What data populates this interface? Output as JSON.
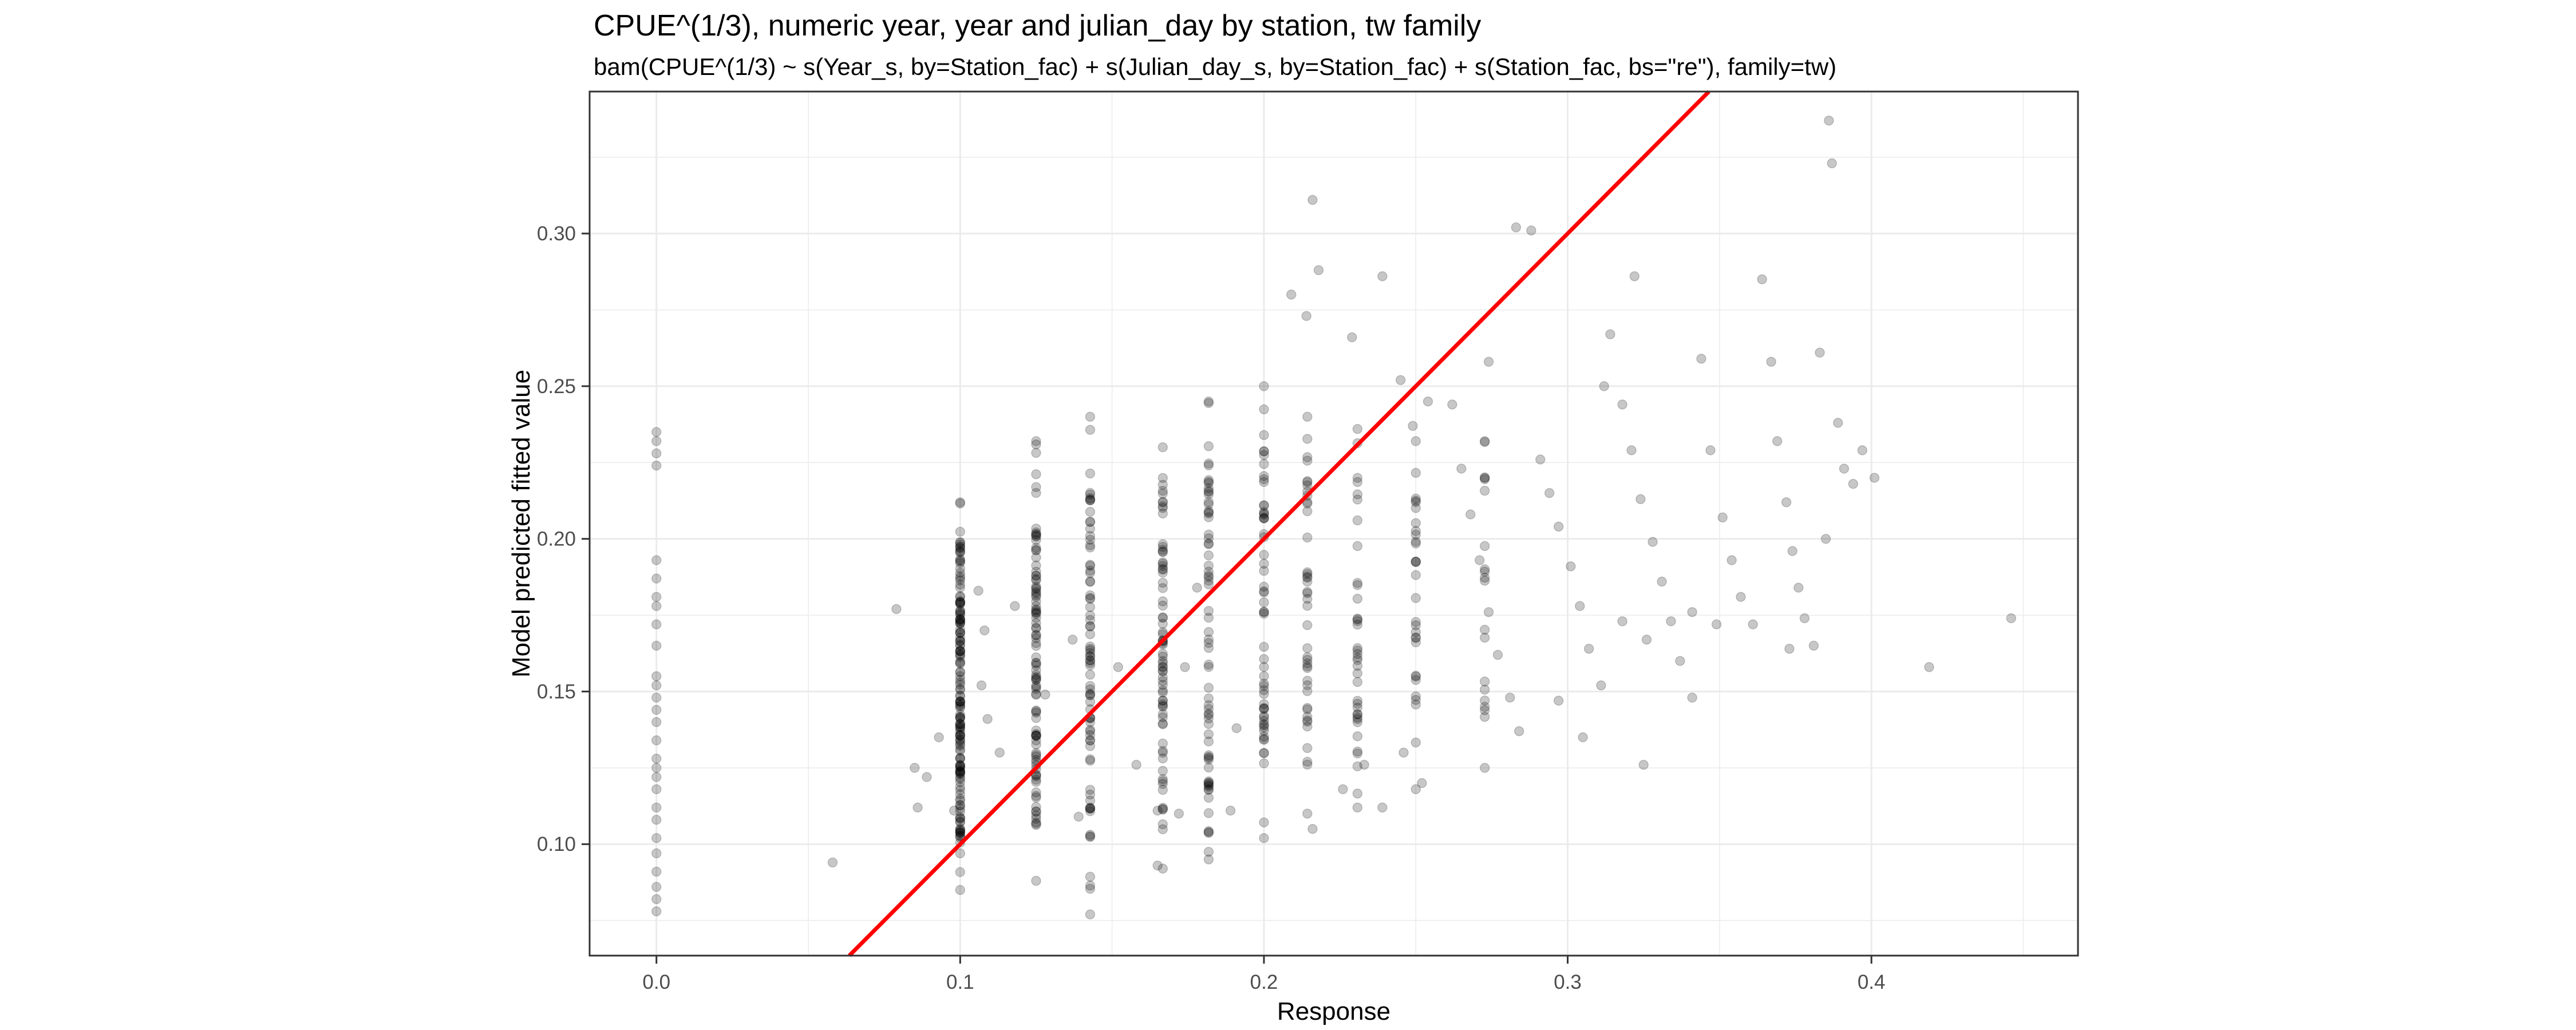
{
  "chart_data": {
    "type": "scatter",
    "title": "CPUE^(1/3), numeric year, year and julian_day by station, tw family",
    "subtitle": "bam(CPUE^(1/3) ~ s(Year_s, by=Station_fac) + s(Julian_day_s, by=Station_fac) + s(Station_fac, bs=\"re\"), family=tw)",
    "xlabel": "Response",
    "ylabel": "Model predicted fitted value",
    "xlim": [
      -0.022,
      0.468
    ],
    "ylim": [
      0.0635,
      0.3465
    ],
    "x_ticks": [
      0.0,
      0.1,
      0.2,
      0.3,
      0.4
    ],
    "x_tick_labels": [
      "0.0",
      "0.1",
      "0.2",
      "0.3",
      "0.4"
    ],
    "y_ticks": [
      0.1,
      0.15,
      0.2,
      0.25,
      0.3
    ],
    "y_tick_labels": [
      "0.10",
      "0.15",
      "0.20",
      "0.25",
      "0.30"
    ],
    "grid": true,
    "theme": "bw",
    "colors": {
      "point_fill": "#000000",
      "point_opacity": 0.22,
      "reference_line": "#ff0000",
      "grid": "#ebebeb",
      "panel_border": "#333333"
    },
    "reference_line": {
      "type": "identity",
      "slope": 1,
      "intercept": 0
    },
    "series": [
      {
        "values": [
          [
            0.0,
            0.235
          ],
          [
            0.0,
            0.232
          ],
          [
            0.0,
            0.228
          ],
          [
            0.0,
            0.224
          ],
          [
            0.0,
            0.193
          ],
          [
            0.0,
            0.187
          ],
          [
            0.0,
            0.181
          ],
          [
            0.0,
            0.178
          ],
          [
            0.0,
            0.172
          ],
          [
            0.0,
            0.165
          ],
          [
            0.0,
            0.155
          ],
          [
            0.0,
            0.152
          ],
          [
            0.0,
            0.148
          ],
          [
            0.0,
            0.144
          ],
          [
            0.0,
            0.14
          ],
          [
            0.0,
            0.134
          ],
          [
            0.0,
            0.128
          ],
          [
            0.0,
            0.125
          ],
          [
            0.0,
            0.122
          ],
          [
            0.0,
            0.118
          ],
          [
            0.0,
            0.112
          ],
          [
            0.0,
            0.108
          ],
          [
            0.0,
            0.102
          ],
          [
            0.0,
            0.097
          ],
          [
            0.0,
            0.091
          ],
          [
            0.0,
            0.086
          ],
          [
            0.0,
            0.082
          ],
          [
            0.0,
            0.078
          ],
          [
            0.058,
            0.094
          ],
          [
            0.079,
            0.177
          ],
          [
            0.085,
            0.125
          ],
          [
            0.086,
            0.112
          ],
          [
            0.089,
            0.122
          ],
          [
            0.093,
            0.135
          ],
          [
            0.098,
            0.111
          ],
          [
            0.106,
            0.183
          ],
          [
            0.108,
            0.17
          ],
          [
            0.107,
            0.152
          ],
          [
            0.109,
            0.141
          ],
          [
            0.113,
            0.13
          ],
          [
            0.118,
            0.178
          ],
          [
            0.128,
            0.149
          ],
          [
            0.137,
            0.167
          ],
          [
            0.139,
            0.109
          ],
          [
            0.152,
            0.158
          ],
          [
            0.158,
            0.126
          ],
          [
            0.165,
            0.111
          ],
          [
            0.165,
            0.093
          ],
          [
            0.172,
            0.11
          ],
          [
            0.174,
            0.158
          ],
          [
            0.178,
            0.184
          ],
          [
            0.189,
            0.111
          ],
          [
            0.191,
            0.138
          ],
          [
            0.216,
            0.311
          ],
          [
            0.209,
            0.28
          ],
          [
            0.218,
            0.288
          ],
          [
            0.214,
            0.273
          ],
          [
            0.229,
            0.266
          ],
          [
            0.239,
            0.286
          ],
          [
            0.245,
            0.252
          ],
          [
            0.249,
            0.237
          ],
          [
            0.254,
            0.245
          ],
          [
            0.216,
            0.105
          ],
          [
            0.226,
            0.118
          ],
          [
            0.233,
            0.126
          ],
          [
            0.239,
            0.112
          ],
          [
            0.246,
            0.13
          ],
          [
            0.252,
            0.12
          ],
          [
            0.262,
            0.244
          ],
          [
            0.265,
            0.223
          ],
          [
            0.268,
            0.208
          ],
          [
            0.271,
            0.193
          ],
          [
            0.274,
            0.176
          ],
          [
            0.277,
            0.162
          ],
          [
            0.281,
            0.148
          ],
          [
            0.284,
            0.137
          ],
          [
            0.288,
            0.301
          ],
          [
            0.291,
            0.226
          ],
          [
            0.294,
            0.215
          ],
          [
            0.297,
            0.204
          ],
          [
            0.301,
            0.191
          ],
          [
            0.304,
            0.178
          ],
          [
            0.307,
            0.164
          ],
          [
            0.311,
            0.152
          ],
          [
            0.314,
            0.267
          ],
          [
            0.318,
            0.244
          ],
          [
            0.321,
            0.229
          ],
          [
            0.324,
            0.213
          ],
          [
            0.328,
            0.199
          ],
          [
            0.331,
            0.186
          ],
          [
            0.334,
            0.173
          ],
          [
            0.322,
            0.286
          ],
          [
            0.325,
            0.126
          ],
          [
            0.337,
            0.16
          ],
          [
            0.341,
            0.148
          ],
          [
            0.344,
            0.259
          ],
          [
            0.347,
            0.229
          ],
          [
            0.351,
            0.207
          ],
          [
            0.354,
            0.193
          ],
          [
            0.357,
            0.181
          ],
          [
            0.361,
            0.172
          ],
          [
            0.364,
            0.285
          ],
          [
            0.367,
            0.258
          ],
          [
            0.369,
            0.232
          ],
          [
            0.372,
            0.212
          ],
          [
            0.374,
            0.196
          ],
          [
            0.376,
            0.184
          ],
          [
            0.378,
            0.174
          ],
          [
            0.381,
            0.165
          ],
          [
            0.383,
            0.261
          ],
          [
            0.386,
            0.337
          ],
          [
            0.387,
            0.323
          ],
          [
            0.389,
            0.238
          ],
          [
            0.391,
            0.223
          ],
          [
            0.394,
            0.218
          ],
          [
            0.397,
            0.229
          ],
          [
            0.401,
            0.22
          ],
          [
            0.419,
            0.158
          ],
          [
            0.446,
            0.174
          ],
          [
            0.385,
            0.2
          ],
          [
            0.373,
            0.164
          ],
          [
            0.341,
            0.176
          ],
          [
            0.349,
            0.172
          ],
          [
            0.305,
            0.135
          ],
          [
            0.297,
            0.147
          ],
          [
            0.312,
            0.25
          ],
          [
            0.318,
            0.173
          ],
          [
            0.326,
            0.167
          ],
          [
            0.283,
            0.302
          ],
          [
            0.274,
            0.258
          ]
        ]
      }
    ],
    "column_groups": [
      {
        "x": 0.1,
        "y_min": 0.085,
        "y_max": 0.212,
        "n": 150,
        "dense_min": 0.102,
        "dense_max": 0.202
      },
      {
        "x": 0.125,
        "y_min": 0.088,
        "y_max": 0.232,
        "n": 95,
        "dense_min": 0.105,
        "dense_max": 0.205
      },
      {
        "x": 0.1428,
        "y_min": 0.077,
        "y_max": 0.24,
        "n": 75,
        "dense_min": 0.108,
        "dense_max": 0.215
      },
      {
        "x": 0.1667,
        "y_min": 0.092,
        "y_max": 0.23,
        "n": 70,
        "dense_min": 0.11,
        "dense_max": 0.218
      },
      {
        "x": 0.1818,
        "y_min": 0.095,
        "y_max": 0.245,
        "n": 65,
        "dense_min": 0.115,
        "dense_max": 0.225
      },
      {
        "x": 0.2,
        "y_min": 0.102,
        "y_max": 0.25,
        "n": 55,
        "dense_min": 0.12,
        "dense_max": 0.23
      },
      {
        "x": 0.2143,
        "y_min": 0.11,
        "y_max": 0.24,
        "n": 40,
        "dense_min": 0.125,
        "dense_max": 0.23
      },
      {
        "x": 0.2308,
        "y_min": 0.112,
        "y_max": 0.236,
        "n": 35,
        "dense_min": 0.125,
        "dense_max": 0.225
      },
      {
        "x": 0.25,
        "y_min": 0.118,
        "y_max": 0.232,
        "n": 28,
        "dense_min": 0.13,
        "dense_max": 0.225
      },
      {
        "x": 0.2727,
        "y_min": 0.125,
        "y_max": 0.232,
        "n": 18,
        "dense_min": 0.135,
        "dense_max": 0.225
      }
    ]
  }
}
